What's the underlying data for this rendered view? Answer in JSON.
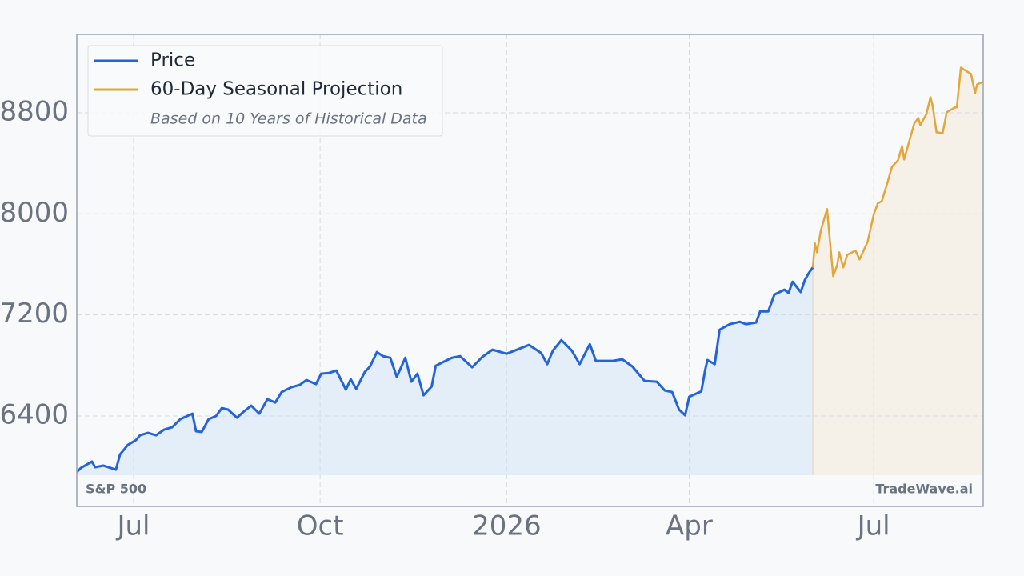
{
  "chart_data": {
    "type": "line",
    "series": [
      {
        "name": "Price",
        "color": "#2563d9",
        "fill": "#e3eef9",
        "x": [
          -28,
          -26,
          -20.5,
          -19,
          -15,
          -8.7,
          -6.7,
          -2.8,
          1.2,
          3.2,
          7.1,
          11.1,
          15,
          19,
          23,
          29,
          30.8,
          33.6,
          37,
          40.7,
          43.5,
          46.6,
          51,
          54.1,
          58,
          62,
          66,
          69.9,
          73,
          77.8,
          82,
          85.2,
          90,
          92.5,
          96.4,
          100,
          104.7,
          107.1,
          109.8,
          114,
          116.6,
          120,
          123,
          126.6,
          129.8,
          134,
          137,
          140,
          143,
          147,
          149,
          153,
          157,
          161,
          167,
          172,
          177,
          184,
          190,
          195,
          201,
          204,
          206.8,
          211,
          216.1,
          220,
          225,
          228,
          236,
          241,
          246,
          250,
          252,
          258,
          262,
          265.6,
          269,
          272,
          274,
          280,
          281.9,
          283,
          286.6,
          289,
          294,
          299,
          302,
          307,
          309,
          313,
          316,
          321,
          323,
          325,
          329,
          331,
          333,
          335
        ],
        "values": [
          5957,
          5989,
          6040,
          5995,
          6008,
          5976,
          6096,
          6172,
          6210,
          6248,
          6267,
          6248,
          6292,
          6311,
          6375,
          6419,
          6280,
          6274,
          6375,
          6400,
          6463,
          6451,
          6387,
          6432,
          6482,
          6419,
          6533,
          6507,
          6590,
          6628,
          6647,
          6685,
          6653,
          6735,
          6741,
          6760,
          6609,
          6691,
          6615,
          6748,
          6792,
          6906,
          6874,
          6861,
          6710,
          6861,
          6672,
          6735,
          6564,
          6634,
          6798,
          6830,
          6861,
          6874,
          6786,
          6868,
          6925,
          6893,
          6931,
          6963,
          6899,
          6811,
          6918,
          7001,
          6918,
          6811,
          6969,
          6836,
          6836,
          6849,
          6792,
          6716,
          6678,
          6672,
          6602,
          6590,
          6451,
          6406,
          6552,
          6596,
          6767,
          6843,
          6811,
          7083,
          7127,
          7146,
          7127,
          7140,
          7228,
          7228,
          7361,
          7400,
          7374,
          7463,
          7381,
          7475,
          7532,
          7576
        ]
      },
      {
        "name": "60-Day Seasonal Projection",
        "color": "#e3a63a",
        "fill": "#f5f1e8",
        "x": [
          335,
          336,
          337,
          339,
          342,
          345,
          347,
          348,
          350,
          352,
          356,
          358,
          362,
          365,
          367,
          369,
          372,
          374,
          377,
          379,
          380,
          385,
          387,
          388,
          391,
          393,
          394,
          396,
          399,
          401,
          405,
          406,
          408,
          413,
          415,
          416,
          419
        ],
        "values": [
          7576,
          7766,
          7696,
          7873,
          8038,
          7507,
          7595,
          7696,
          7576,
          7677,
          7709,
          7640,
          7779,
          7994,
          8082,
          8101,
          8259,
          8373,
          8424,
          8537,
          8430,
          8715,
          8759,
          8702,
          8791,
          8923,
          8860,
          8645,
          8639,
          8804,
          8842,
          8842,
          9157,
          9107,
          8955,
          9025,
          9044
        ]
      }
    ],
    "legend_note": "Based on 10 Years of Historical Data",
    "corner_left": "S&P 500",
    "corner_right": "TradeWave.ai",
    "xlim": [
      -28,
      419
    ],
    "xticks": [
      {
        "value": 0,
        "label": "Jul"
      },
      {
        "value": 92,
        "label": "Oct"
      },
      {
        "value": 184,
        "label": "2026"
      },
      {
        "value": 274,
        "label": "Apr"
      },
      {
        "value": 365,
        "label": "Jul"
      }
    ],
    "ylim": [
      5685,
      9420
    ],
    "yticks": [
      6400,
      7200,
      8000,
      8800
    ],
    "grid": true,
    "legend": "upper-left"
  }
}
